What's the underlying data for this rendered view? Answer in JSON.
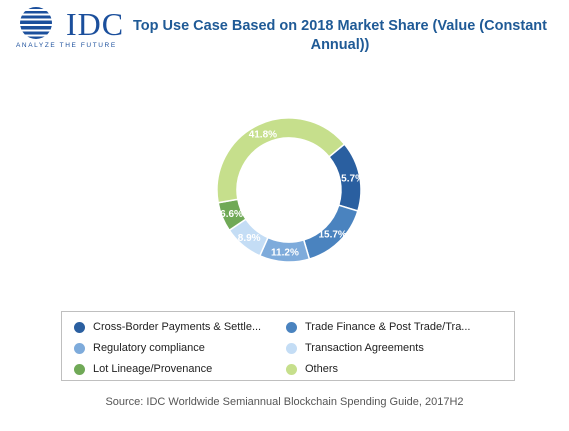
{
  "logo": {
    "brand": "IDC",
    "tagline": "ANALYZE THE FUTURE",
    "color": "#1b4f9c"
  },
  "chart_data": {
    "type": "pie",
    "style": "donut",
    "title": "Top Use Case Based on 2018 Market Share (Value (Constant Annual))",
    "categories": [
      "Cross-Border Payments & Settle...",
      "Trade Finance & Post Trade/Tra...",
      "Regulatory compliance",
      "Transaction Agreements",
      "Lot Lineage/Provenance",
      "Others"
    ],
    "values": [
      15.7,
      15.7,
      11.2,
      8.9,
      6.6,
      41.8
    ],
    "data_labels": [
      "15.7%",
      "15.7%",
      "11.2%",
      "8.9%",
      "6.6%",
      "41.8%"
    ],
    "colors": [
      "#2a5fa0",
      "#4a83bf",
      "#7eabdb",
      "#c4ddf5",
      "#70a957",
      "#c6df8c"
    ],
    "legend_position": "bottom"
  },
  "source": "Source: IDC Worldwide Semiannual Blockchain Spending Guide, 2017H2"
}
